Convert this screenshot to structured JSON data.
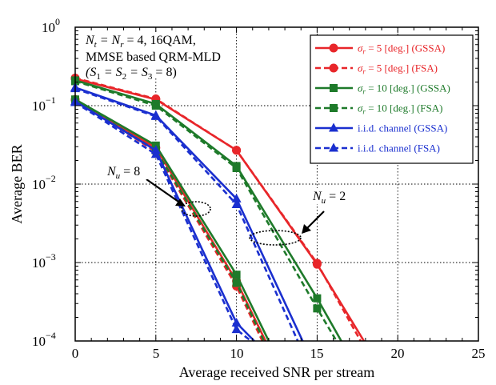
{
  "chart_data": {
    "type": "line",
    "xlabel": "Average received SNR per stream",
    "ylabel": "Average BER",
    "xlim": [
      0,
      25
    ],
    "ylim": [
      0.0001,
      1
    ],
    "yscale": "log",
    "grid": true,
    "legend_position": "top-right",
    "x_ticks": [
      "0",
      "5",
      "10",
      "15",
      "20",
      "25"
    ],
    "y_ticks": [
      {
        "base": "10",
        "exp": "0"
      },
      {
        "base": "10",
        "exp": "−1"
      },
      {
        "base": "10",
        "exp": "−2"
      },
      {
        "base": "10",
        "exp": "−3"
      },
      {
        "base": "10",
        "exp": "−4"
      }
    ],
    "annotations": {
      "params": {
        "line1": "N",
        "line1_sub_t": "t",
        "line1_mid": " = N",
        "line1_sub_r": "r",
        "line1_end": " = 4, 16QAM,",
        "line2": "MMSE based QRM-MLD",
        "line3_a": "(S",
        "line3_s1": "1",
        "line3_b": " = S",
        "line3_s2": "2",
        "line3_c": " = S",
        "line3_s3": "3",
        "line3_d": " = 8)"
      },
      "nu8": {
        "symbol": "N",
        "sub": "u",
        "value": " = 8"
      },
      "nu2": {
        "symbol": "N",
        "sub": "u",
        "value": " = 2"
      }
    },
    "series": [
      {
        "name": "σr = 5 [deg.] (GSSA)",
        "sigma": "σ",
        "sub": "r",
        "rest": " = 5 [deg.] (GSSA)",
        "color": "#e8262a",
        "dash": false,
        "marker": "circle",
        "group": "Nu=2",
        "points": [
          [
            0,
            0.22
          ],
          [
            5,
            0.12
          ],
          [
            10,
            0.027
          ],
          [
            15,
            0.00095
          ],
          [
            17.9,
            0.0001
          ]
        ]
      },
      {
        "name": "σr = 5 [deg.] (FSA)",
        "sigma": "σ",
        "sub": "r",
        "rest": " = 5 [deg.] (FSA)",
        "color": "#e8262a",
        "dash": true,
        "marker": "circle",
        "group": "Nu=2",
        "points": [
          [
            0,
            0.225
          ],
          [
            5,
            0.122
          ],
          [
            10,
            0.027
          ],
          [
            15,
            0.00098
          ],
          [
            17.7,
            0.0001
          ]
        ]
      },
      {
        "name": "σr = 10 [deg.] (GSSA)",
        "sigma": "σ",
        "sub": "r",
        "rest": " = 10 [deg.] (GSSA)",
        "color": "#1e7a2a",
        "dash": false,
        "marker": "square",
        "group": "Nu=2",
        "points": [
          [
            0,
            0.21
          ],
          [
            5,
            0.105
          ],
          [
            10,
            0.017
          ],
          [
            15,
            0.00035
          ],
          [
            16.5,
            0.0001
          ]
        ]
      },
      {
        "name": "σr = 10 [deg.] (FSA)",
        "sigma": "σ",
        "sub": "r",
        "rest": " = 10 [deg.] (FSA)",
        "color": "#1e7a2a",
        "dash": true,
        "marker": "square",
        "group": "Nu=2",
        "points": [
          [
            0,
            0.205
          ],
          [
            5,
            0.1
          ],
          [
            10,
            0.016
          ],
          [
            15,
            0.00026
          ],
          [
            16.2,
            0.0001
          ]
        ]
      },
      {
        "name": "i.i.d. channel (GSSA)",
        "sigma": "",
        "sub": "",
        "rest": "i.i.d. channel (GSSA)",
        "color": "#1a2fcf",
        "dash": false,
        "marker": "triangle",
        "group": "Nu=2",
        "points": [
          [
            0,
            0.17
          ],
          [
            5,
            0.075
          ],
          [
            10,
            0.0065
          ],
          [
            14.1,
            0.0001
          ]
        ]
      },
      {
        "name": "i.i.d. channel (FSA)",
        "sigma": "",
        "sub": "",
        "rest": "i.i.d. channel (FSA)",
        "color": "#1a2fcf",
        "dash": true,
        "marker": "triangle",
        "group": "Nu=2",
        "points": [
          [
            0,
            0.165
          ],
          [
            5,
            0.073
          ],
          [
            10,
            0.0055
          ],
          [
            13.8,
            0.0001
          ]
        ]
      },
      {
        "name": "σr = 5 [deg.] (GSSA), Nu = 8",
        "color": "#e8262a",
        "dash": false,
        "marker": "circle",
        "group": "Nu=8",
        "points": [
          [
            0,
            0.12
          ],
          [
            5,
            0.029
          ],
          [
            10,
            0.00058
          ],
          [
            11.8,
            0.0001
          ]
        ]
      },
      {
        "name": "σr = 5 [deg.] (FSA), Nu = 8",
        "color": "#e8262a",
        "dash": true,
        "marker": "circle",
        "group": "Nu=8",
        "points": [
          [
            0,
            0.118
          ],
          [
            5,
            0.026
          ],
          [
            10,
            0.0005
          ],
          [
            11.6,
            0.0001
          ]
        ]
      },
      {
        "name": "σr = 10 [deg.] (GSSA), Nu = 8",
        "color": "#1e7a2a",
        "dash": false,
        "marker": "square",
        "group": "Nu=8",
        "points": [
          [
            0,
            0.12
          ],
          [
            5,
            0.031
          ],
          [
            10,
            0.0007
          ],
          [
            12.0,
            0.0001
          ]
        ]
      },
      {
        "name": "σr = 10 [deg.] (FSA), Nu = 8",
        "color": "#1e7a2a",
        "dash": true,
        "marker": "square",
        "group": "Nu=8",
        "points": [
          [
            0,
            0.117
          ],
          [
            5,
            0.027
          ],
          [
            10,
            0.00055
          ],
          [
            11.7,
            0.0001
          ]
        ]
      },
      {
        "name": "i.i.d. channel (GSSA), Nu = 8",
        "color": "#1a2fcf",
        "dash": false,
        "marker": "triangle",
        "group": "Nu=8",
        "points": [
          [
            0,
            0.113
          ],
          [
            5,
            0.027
          ],
          [
            10,
            0.00017
          ],
          [
            11.1,
            0.0001
          ]
        ]
      },
      {
        "name": "i.i.d. channel (FSA), Nu = 8",
        "color": "#1a2fcf",
        "dash": true,
        "marker": "triangle",
        "group": "Nu=8",
        "points": [
          [
            0,
            0.11
          ],
          [
            5,
            0.024
          ],
          [
            10,
            0.00014
          ],
          [
            10.9,
            0.0001
          ]
        ]
      }
    ]
  }
}
